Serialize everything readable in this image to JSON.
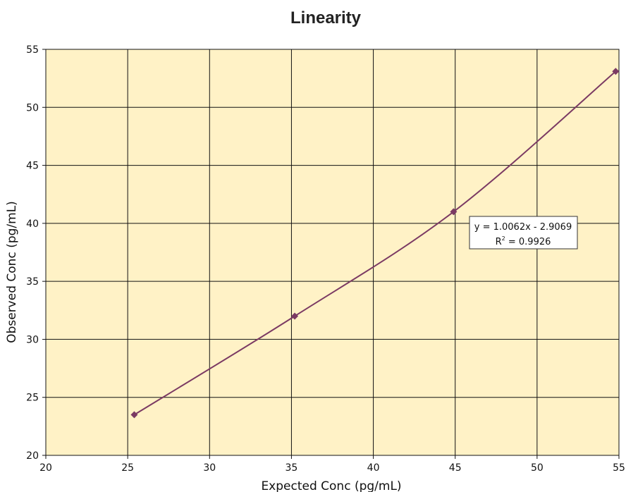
{
  "chart_data": {
    "type": "scatter",
    "title": "Linearity",
    "xlabel": "Expected Conc (pg/mL)",
    "ylabel": "Observed Conc (pg/mL)",
    "xlim": [
      20,
      55
    ],
    "ylim": [
      20,
      55
    ],
    "xticks": [
      20,
      25,
      30,
      35,
      40,
      45,
      50,
      55
    ],
    "yticks": [
      20,
      25,
      30,
      35,
      40,
      45,
      50,
      55
    ],
    "grid": true,
    "plot_background": "#FFF2C6",
    "series": [
      {
        "color": "#7B3A63",
        "marker": "diamond",
        "line": "smooth",
        "points": [
          {
            "x": 25.4,
            "y": 23.5
          },
          {
            "x": 35.2,
            "y": 32.0
          },
          {
            "x": 44.9,
            "y": 41.0
          },
          {
            "x": 54.8,
            "y": 53.1
          }
        ]
      }
    ],
    "annotation": {
      "equation": "y = 1.0062x - 2.9069",
      "r2_prefix": "R",
      "r2_sup": "2",
      "r2_value": " = 0.9926"
    }
  }
}
